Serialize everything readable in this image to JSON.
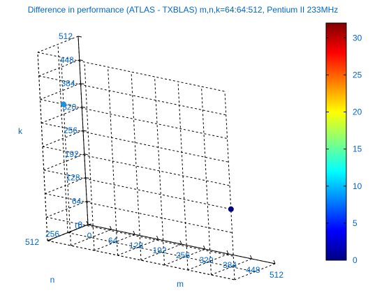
{
  "chart_data": {
    "type": "scatter",
    "title": "Difference in performance (ATLAS - TXBLAS) m,n,k=64:64:512, Pentium II 233MHz",
    "xlabel": "m",
    "ylabel": "n",
    "zlabel": "k",
    "x_ticks": [
      "0",
      "64",
      "128",
      "192",
      "256",
      "320",
      "384",
      "448",
      "512"
    ],
    "y_ticks": [
      "0",
      "256",
      "512"
    ],
    "z_ticks": [
      "0",
      "64",
      "128",
      "192",
      "256",
      "320",
      "384",
      "448",
      "512"
    ],
    "xlim": [
      0,
      512
    ],
    "ylim": [
      0,
      512
    ],
    "zlim": [
      0,
      512
    ],
    "grid": true,
    "points": [
      {
        "m": 64,
        "n": 512,
        "k": 384,
        "value": 10.5,
        "color": "#1e90e0"
      },
      {
        "m": 512,
        "n": 512,
        "k": 192,
        "value": 0.5,
        "color": "#000080"
      }
    ],
    "colorbar": {
      "colormap": "jet",
      "range": [
        0,
        32
      ],
      "ticks": [
        "0",
        "5",
        "10",
        "15",
        "20",
        "25",
        "30"
      ]
    }
  },
  "colors": {
    "label_color": "#0066cc",
    "axis_color": "#000000",
    "background": "#ffffff"
  }
}
